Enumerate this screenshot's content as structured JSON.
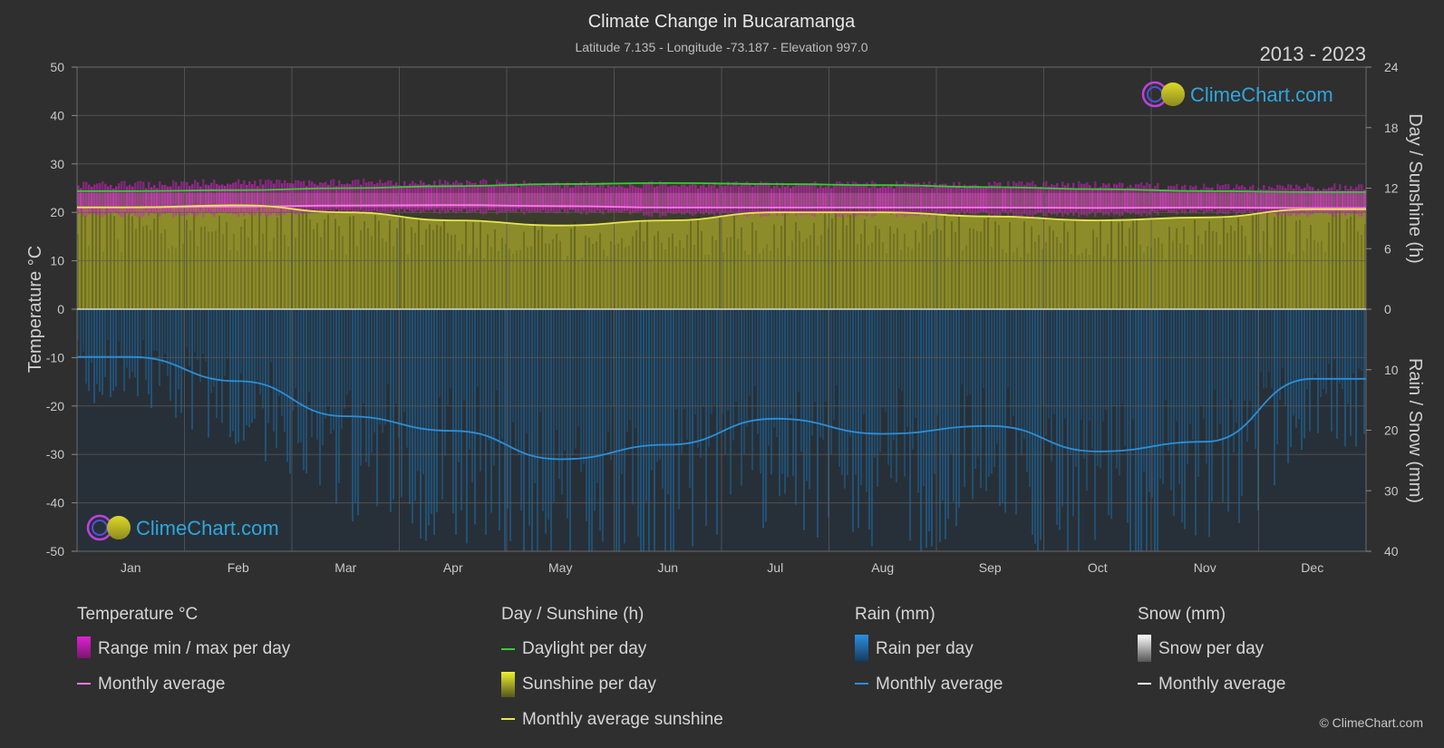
{
  "header": {
    "title": "Climate Change in Bucaramanga",
    "subtitle": "Latitude 7.135 - Longitude -73.187 - Elevation 997.0",
    "year_range": "2013 - 2023"
  },
  "logo": {
    "text": "ClimeChart.com"
  },
  "copyright": "© ClimeChart.com",
  "colors": {
    "background": "#2f2f2f",
    "grid": "#5a5a5a",
    "daylight": "#33cc33",
    "sunshine_fill": "#9a9a2a",
    "sunshine_line": "#e6e650",
    "temp_range": "#d020c0",
    "temp_avg": "#ff77ee",
    "rain_fill": "#1e5f8c",
    "rain_line": "#2b8fd8",
    "snow": "#ffffff"
  },
  "chart_data": {
    "type": "area",
    "categories": [
      "Jan",
      "Feb",
      "Mar",
      "Apr",
      "May",
      "Jun",
      "Jul",
      "Aug",
      "Sep",
      "Oct",
      "Nov",
      "Dec"
    ],
    "axes": {
      "left": {
        "label": "Temperature °C",
        "range": [
          -50,
          50
        ],
        "ticks": [
          50,
          40,
          30,
          20,
          10,
          0,
          -10,
          -20,
          -30,
          -40,
          -50
        ]
      },
      "right_top": {
        "label": "Day / Sunshine (h)",
        "range": [
          0,
          24
        ],
        "ticks": [
          24,
          18,
          12,
          6,
          0
        ]
      },
      "right_bottom": {
        "label": "Rain / Snow (mm)",
        "range": [
          0,
          40
        ],
        "ticks": [
          10,
          20,
          30,
          40
        ]
      }
    },
    "grid": true,
    "series": [
      {
        "name": "Daylight per day",
        "unit": "h",
        "values": [
          11.7,
          11.8,
          12.0,
          12.2,
          12.4,
          12.5,
          12.4,
          12.3,
          12.1,
          11.9,
          11.7,
          11.6
        ]
      },
      {
        "name": "Monthly average sunshine",
        "unit": "h",
        "values": [
          10.1,
          10.3,
          9.6,
          8.8,
          8.3,
          8.8,
          9.6,
          9.6,
          9.2,
          8.8,
          9.1,
          9.9
        ]
      },
      {
        "name": "Range min / max per day",
        "unit": "°C",
        "min": [
          19.0,
          19.0,
          19.5,
          19.5,
          19.5,
          19.0,
          19.0,
          19.0,
          19.0,
          19.0,
          19.5,
          19.0
        ],
        "max": [
          26.5,
          27.0,
          27.0,
          27.0,
          26.5,
          26.5,
          26.5,
          26.5,
          26.5,
          26.5,
          26.0,
          26.0
        ]
      },
      {
        "name": "Monthly average",
        "unit": "°C",
        "values": [
          21.0,
          21.2,
          21.4,
          21.5,
          21.3,
          21.0,
          21.0,
          21.0,
          21.0,
          20.9,
          21.0,
          20.9
        ]
      },
      {
        "name": "Rain monthly average",
        "unit": "mm",
        "values": [
          7.9,
          11.9,
          17.7,
          20.1,
          24.8,
          22.4,
          18.1,
          20.6,
          19.3,
          23.5,
          21.9,
          11.5
        ]
      }
    ]
  },
  "legend": {
    "groups": [
      {
        "heading": "Temperature °C",
        "items": [
          "Range min / max per day",
          "Monthly average"
        ]
      },
      {
        "heading": "Day / Sunshine (h)",
        "items": [
          "Daylight per day",
          "Sunshine per day",
          "Monthly average sunshine"
        ]
      },
      {
        "heading": "Rain (mm)",
        "items": [
          "Rain per day",
          "Monthly average"
        ]
      },
      {
        "heading": "Snow (mm)",
        "items": [
          "Snow per day",
          "Monthly average"
        ]
      }
    ]
  }
}
